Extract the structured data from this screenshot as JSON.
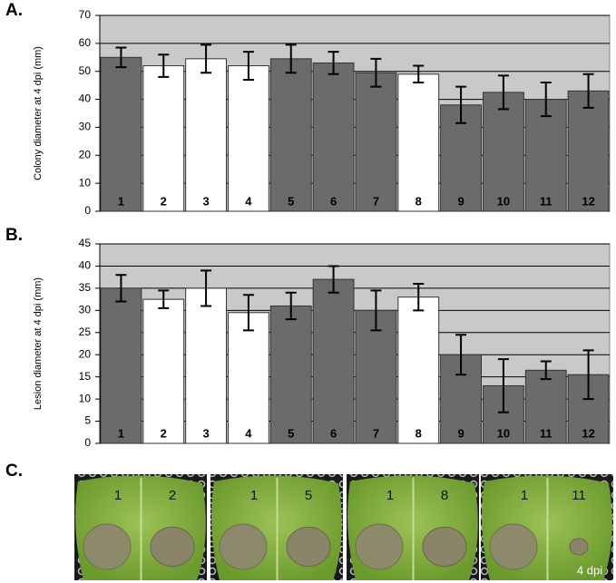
{
  "chart_data": [
    {
      "type": "bar",
      "panel_label": "A.",
      "ylabel": "Colony diameter at 4 dpi (mm)",
      "categories": [
        "1",
        "2",
        "3",
        "4",
        "5",
        "6",
        "7",
        "8",
        "9",
        "10",
        "11",
        "12"
      ],
      "values": [
        55,
        52,
        54.5,
        52,
        54.5,
        53,
        49.5,
        49,
        38,
        42.5,
        40,
        43
      ],
      "errors": [
        3.5,
        4,
        5,
        5,
        5,
        4,
        5,
        3,
        6.5,
        6,
        6,
        6
      ],
      "colors": [
        "#6b6b6b",
        "#ffffff",
        "#ffffff",
        "#ffffff",
        "#6b6b6b",
        "#6b6b6b",
        "#6b6b6b",
        "#ffffff",
        "#6b6b6b",
        "#6b6b6b",
        "#6b6b6b",
        "#6b6b6b"
      ],
      "ylim": [
        0,
        70
      ],
      "yticks": [
        0,
        10,
        20,
        30,
        40,
        50,
        60,
        70
      ],
      "grid": true
    },
    {
      "type": "bar",
      "panel_label": "B.",
      "ylabel": "Lesion diameter at 4 dpi (mm)",
      "categories": [
        "1",
        "2",
        "3",
        "4",
        "5",
        "6",
        "7",
        "8",
        "9",
        "10",
        "11",
        "12"
      ],
      "values": [
        35,
        32.5,
        35,
        29.5,
        31,
        37,
        30,
        33,
        20,
        13,
        16.5,
        15.5
      ],
      "errors": [
        3,
        2,
        4,
        4,
        3,
        3,
        4.5,
        3,
        4.5,
        6,
        2,
        5.5
      ],
      "colors": [
        "#6b6b6b",
        "#ffffff",
        "#ffffff",
        "#ffffff",
        "#6b6b6b",
        "#6b6b6b",
        "#6b6b6b",
        "#ffffff",
        "#6b6b6b",
        "#6b6b6b",
        "#6b6b6b",
        "#6b6b6b"
      ],
      "ylim": [
        0,
        45
      ],
      "yticks": [
        0,
        5,
        10,
        15,
        20,
        25,
        30,
        35,
        40,
        45
      ],
      "grid": true
    }
  ],
  "photo_panel": {
    "panel_label": "C.",
    "leaves": [
      [
        "1",
        "2"
      ],
      [
        "1",
        "5"
      ],
      [
        "1",
        "8"
      ],
      [
        "1",
        "11"
      ]
    ],
    "note": "4 dpi"
  }
}
